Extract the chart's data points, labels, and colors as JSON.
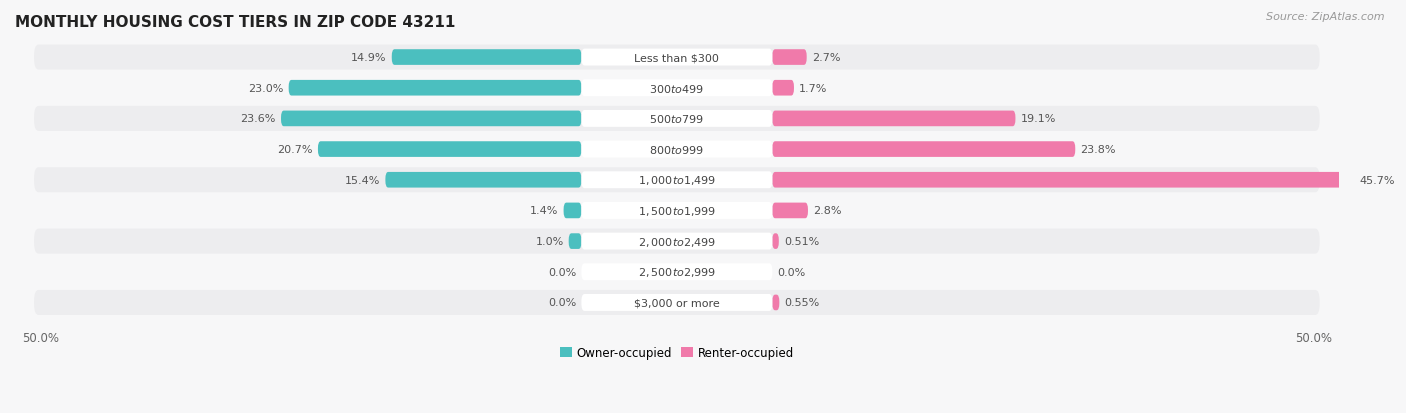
{
  "title": "MONTHLY HOUSING COST TIERS IN ZIP CODE 43211",
  "source": "Source: ZipAtlas.com",
  "categories": [
    "Less than $300",
    "$300 to $499",
    "$500 to $799",
    "$800 to $999",
    "$1,000 to $1,499",
    "$1,500 to $1,999",
    "$2,000 to $2,499",
    "$2,500 to $2,999",
    "$3,000 or more"
  ],
  "owner_values": [
    14.9,
    23.0,
    23.6,
    20.7,
    15.4,
    1.4,
    1.0,
    0.0,
    0.0
  ],
  "renter_values": [
    2.7,
    1.7,
    19.1,
    23.8,
    45.7,
    2.8,
    0.51,
    0.0,
    0.55
  ],
  "owner_color": "#4bbfbf",
  "renter_color": "#f07aaa",
  "owner_label": "Owner-occupied",
  "renter_label": "Renter-occupied",
  "axis_limit": 50.0,
  "bg_color": "#f7f7f8",
  "row_bg_colors": [
    "#ededef",
    "#f7f7f8"
  ],
  "title_fontsize": 11,
  "source_fontsize": 8,
  "label_fontsize": 8.5,
  "value_fontsize": 8,
  "category_fontsize": 8,
  "owner_value_labels": [
    "14.9%",
    "23.0%",
    "23.6%",
    "20.7%",
    "15.4%",
    "1.4%",
    "1.0%",
    "0.0%",
    "0.0%"
  ],
  "renter_value_labels": [
    "2.7%",
    "1.7%",
    "19.1%",
    "23.8%",
    "45.7%",
    "2.8%",
    "0.51%",
    "0.0%",
    "0.55%"
  ]
}
